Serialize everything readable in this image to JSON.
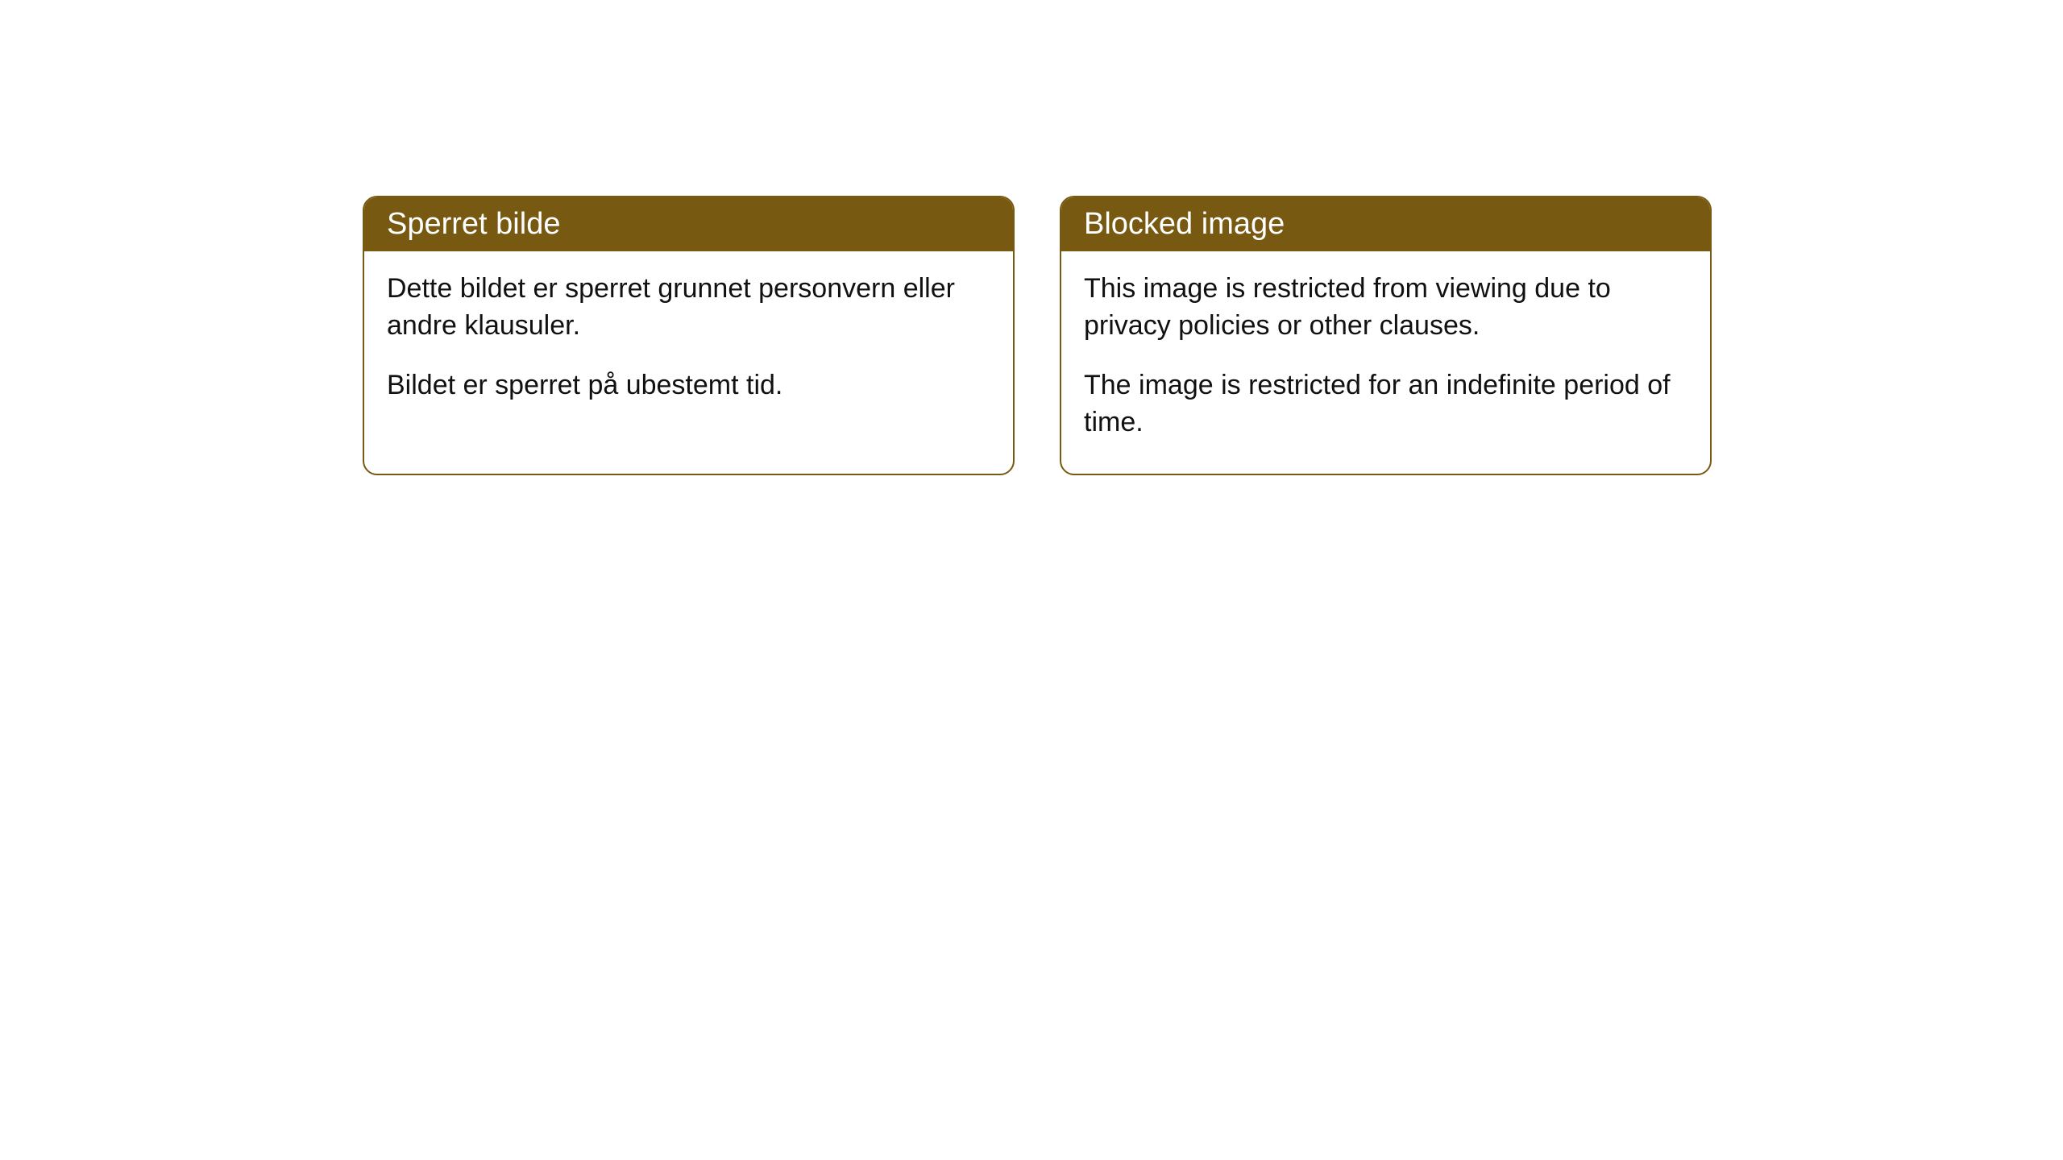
{
  "colors": {
    "header_bg": "#785912",
    "header_text": "#ffffff",
    "body_bg": "#ffffff",
    "body_text": "#111111",
    "border": "#785912"
  },
  "cards": [
    {
      "title": "Sperret bilde",
      "paragraphs": [
        "Dette bildet er sperret grunnet personvern eller andre klausuler.",
        "Bildet er sperret på ubestemt tid."
      ]
    },
    {
      "title": "Blocked image",
      "paragraphs": [
        "This image is restricted from viewing due to privacy policies or other clauses.",
        "The image is restricted for an indefinite period of time."
      ]
    }
  ]
}
